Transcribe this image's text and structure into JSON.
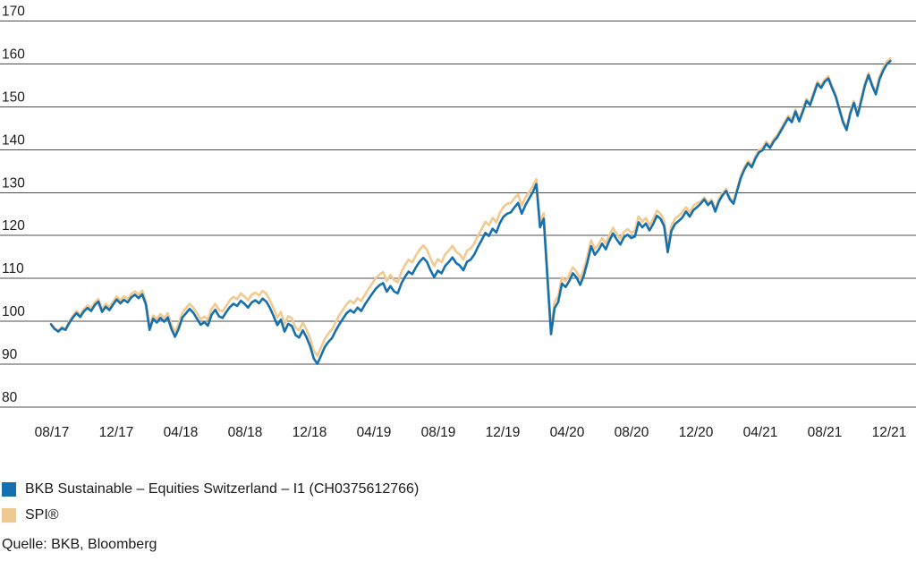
{
  "source": "Quelle: BKB, Bloomberg",
  "colors": {
    "fund_blue": "#1670ad",
    "spi_tan": "#f2c98f",
    "gridline": "#4d4d4d",
    "text": "#1a1a1a",
    "background": "#ffffff"
  },
  "chart_data": {
    "type": "line",
    "title": "",
    "xlabel": "",
    "ylabel": "",
    "grid": true,
    "legend_position": "bottom-left",
    "x_axis": {
      "tick_labels": [
        "08/17",
        "12/17",
        "04/18",
        "08/18",
        "12/18",
        "04/19",
        "08/19",
        "12/19",
        "04/20",
        "08/20",
        "12/20",
        "04/21",
        "08/21",
        "12/21"
      ]
    },
    "y_axis": {
      "min": 80,
      "max": 170,
      "step": 10,
      "ticks": [
        170,
        160,
        150,
        140,
        130,
        120,
        110,
        100,
        90,
        80
      ],
      "tick_labels": [
        "170",
        "160",
        "150",
        "140",
        "130",
        "120",
        "110",
        "100",
        "90",
        "80"
      ]
    },
    "x_unit": "weekly samples from 08/2017 to 12/2021",
    "series": [
      {
        "name": "BKB Sustainable – Equities Switzerland – I1 (CH0375612766)",
        "color": "#1670ad",
        "values": [
          99.3,
          98.2,
          97.6,
          98.4,
          98.0,
          99.6,
          100.9,
          101.9,
          101.0,
          102.3,
          103.1,
          102.4,
          103.8,
          104.6,
          102.2,
          103.4,
          102.6,
          103.9,
          105.1,
          104.2,
          105.0,
          104.4,
          105.6,
          106.2,
          105.4,
          106.3,
          103.9,
          98.0,
          100.6,
          99.7,
          100.8,
          99.9,
          100.9,
          98.2,
          96.4,
          98.3,
          100.9,
          101.9,
          102.9,
          102.0,
          100.6,
          99.2,
          99.8,
          99.0,
          101.5,
          102.7,
          101.2,
          100.8,
          102.1,
          103.3,
          104.1,
          103.6,
          104.8,
          104.1,
          103.2,
          104.4,
          104.9,
          104.2,
          105.3,
          104.6,
          103.1,
          101.2,
          99.1,
          100.4,
          97.6,
          99.4,
          98.9,
          96.8,
          96.2,
          97.9,
          96.3,
          94.2,
          91.3,
          90.1,
          92.0,
          94.0,
          95.2,
          96.1,
          97.8,
          99.3,
          100.6,
          101.9,
          102.6,
          102.0,
          103.2,
          102.4,
          103.9,
          105.2,
          106.4,
          107.6,
          108.4,
          108.9,
          106.9,
          108.2,
          107.0,
          106.5,
          108.8,
          110.4,
          111.6,
          111.0,
          112.6,
          113.9,
          114.8,
          113.9,
          111.9,
          110.3,
          111.8,
          111.2,
          112.9,
          113.8,
          114.9,
          113.6,
          113.0,
          111.9,
          113.9,
          114.4,
          115.6,
          117.4,
          118.9,
          120.6,
          119.9,
          121.6,
          120.7,
          122.9,
          124.4,
          125.1,
          125.4,
          126.6,
          127.6,
          125.1,
          127.1,
          128.6,
          130.1,
          132.0,
          121.9,
          123.9,
          110.4,
          97.0,
          103.1,
          104.5,
          108.8,
          108.0,
          109.4,
          111.2,
          110.2,
          108.5,
          110.7,
          113.9,
          117.5,
          115.5,
          116.6,
          118.1,
          116.8,
          118.8,
          120.5,
          119.1,
          117.9,
          119.6,
          120.2,
          119.4,
          119.8,
          123.1,
          121.9,
          122.8,
          121.2,
          122.7,
          124.6,
          123.9,
          122.2,
          116.1,
          121.1,
          122.7,
          123.4,
          124.2,
          125.6,
          124.4,
          125.9,
          126.6,
          127.4,
          128.4,
          127.1,
          127.9,
          125.6,
          127.9,
          129.4,
          130.4,
          128.4,
          127.4,
          130.4,
          133.4,
          135.4,
          136.9,
          135.9,
          137.9,
          139.4,
          139.9,
          141.4,
          140.4,
          141.9,
          142.9,
          144.4,
          145.9,
          147.4,
          146.4,
          148.9,
          146.6,
          148.9,
          151.4,
          150.4,
          152.9,
          155.4,
          154.4,
          155.9,
          156.6,
          154.4,
          152.4,
          149.4,
          146.4,
          144.6,
          148.4,
          150.9,
          147.9,
          151.4,
          154.9,
          157.4,
          154.9,
          152.9,
          156.4,
          158.4,
          159.9,
          160.7
        ]
      },
      {
        "name": "SPI®",
        "color": "#f2c98f",
        "values": [
          99.4,
          98.4,
          97.8,
          98.7,
          98.3,
          100.0,
          101.3,
          102.4,
          101.5,
          102.8,
          103.7,
          103.0,
          104.4,
          105.2,
          102.8,
          104.1,
          103.3,
          104.6,
          105.8,
          104.9,
          105.8,
          105.2,
          106.4,
          107.0,
          106.2,
          107.2,
          104.7,
          98.7,
          101.4,
          100.5,
          101.7,
          100.8,
          101.9,
          99.2,
          97.4,
          99.4,
          102.0,
          103.1,
          104.1,
          103.2,
          101.9,
          100.5,
          101.1,
          100.4,
          102.9,
          104.1,
          102.7,
          102.3,
          103.6,
          104.9,
          105.7,
          105.2,
          106.5,
          105.8,
          104.9,
          106.2,
          106.7,
          106.0,
          107.1,
          106.4,
          104.9,
          103.0,
          100.9,
          102.2,
          99.3,
          101.2,
          100.7,
          98.5,
          97.9,
          99.7,
          98.1,
          96.0,
          93.1,
          92.0,
          93.9,
          95.9,
          97.2,
          98.1,
          99.8,
          101.4,
          102.7,
          104.0,
          104.8,
          104.2,
          105.4,
          104.7,
          106.2,
          107.6,
          108.8,
          110.1,
          110.9,
          111.5,
          109.4,
          110.8,
          109.6,
          109.1,
          111.5,
          113.1,
          114.4,
          113.7,
          115.4,
          116.7,
          117.7,
          116.7,
          114.6,
          112.9,
          114.5,
          113.8,
          115.6,
          116.5,
          117.6,
          116.2,
          115.6,
          114.4,
          116.5,
          117.0,
          118.2,
          120.0,
          121.5,
          123.2,
          122.4,
          124.1,
          123.1,
          125.3,
          126.7,
          127.4,
          127.6,
          128.7,
          129.6,
          127.0,
          128.9,
          130.2,
          131.5,
          133.2,
          123.2,
          125.2,
          111.8,
          98.4,
          104.5,
          105.9,
          110.2,
          109.4,
          110.8,
          112.6,
          111.6,
          109.9,
          112.1,
          115.3,
          118.9,
          116.9,
          117.9,
          119.4,
          118.1,
          120.1,
          121.8,
          120.4,
          119.2,
          120.9,
          121.5,
          120.7,
          121.1,
          124.4,
          123.2,
          124.1,
          122.4,
          123.9,
          125.8,
          125.1,
          123.4,
          117.3,
          122.3,
          123.9,
          124.6,
          125.4,
          126.6,
          125.4,
          126.9,
          127.6,
          127.9,
          128.9,
          127.6,
          128.4,
          126.1,
          128.4,
          129.9,
          130.9,
          128.9,
          127.9,
          130.9,
          133.9,
          135.9,
          137.4,
          136.4,
          138.4,
          139.9,
          140.4,
          141.9,
          140.9,
          142.4,
          143.4,
          144.9,
          146.4,
          147.9,
          146.9,
          149.4,
          147.1,
          149.4,
          151.9,
          150.9,
          153.4,
          155.9,
          154.9,
          156.4,
          157.1,
          154.9,
          152.9,
          149.9,
          146.9,
          145.1,
          148.9,
          151.4,
          148.4,
          151.9,
          155.4,
          157.9,
          155.4,
          153.4,
          157.0,
          159.0,
          160.5,
          161.3
        ]
      }
    ]
  }
}
